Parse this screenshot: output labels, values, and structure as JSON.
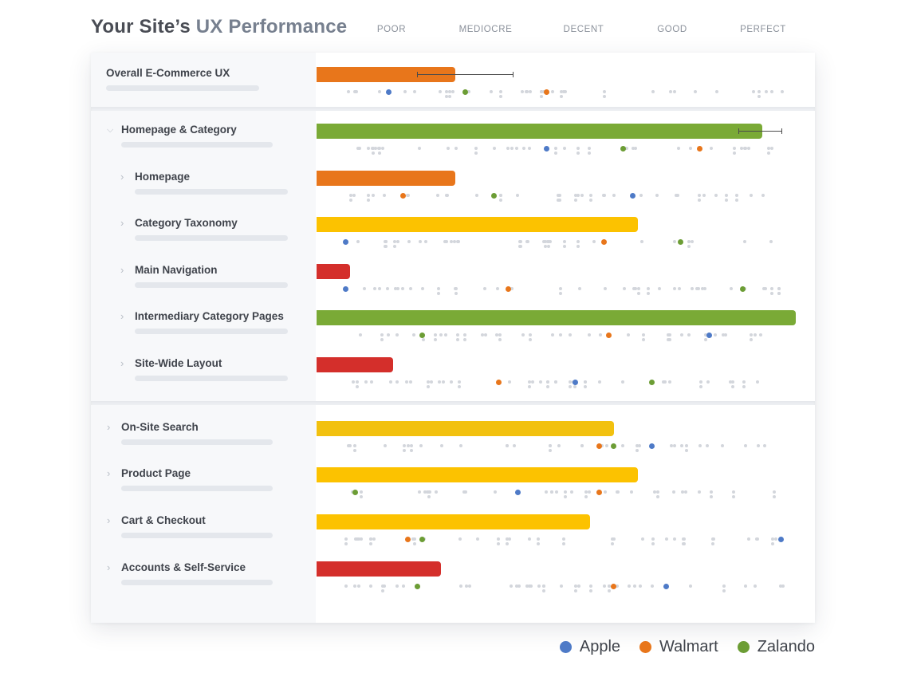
{
  "header": {
    "title_prefix": "Your Site’s ",
    "title_accent": "UX Performance"
  },
  "chart_data": {
    "type": "bar",
    "title": "Your Site’s UX Performance",
    "scale_labels": [
      "POOR",
      "MEDIOCRE",
      "DECENT",
      "GOOD",
      "PERFECT"
    ],
    "xlim": [
      0,
      100
    ],
    "rows": [
      {
        "label": "Overall E-Commerce UX",
        "level": 0,
        "score": 29,
        "rating": "mediocre",
        "color": "#e8761b",
        "error": [
          21,
          41
        ],
        "apple": 15,
        "walmart": 48,
        "zalando": 31
      },
      {
        "label": "Homepage & Category",
        "level": 1,
        "score": 93,
        "rating": "perfect",
        "color": "#7aaa36",
        "error": [
          88,
          97
        ],
        "apple": 48,
        "walmart": 80,
        "zalando": 64
      },
      {
        "label": "Homepage",
        "level": 2,
        "score": 29,
        "rating": "mediocre",
        "color": "#e8761b",
        "apple": 66,
        "walmart": 18,
        "zalando": 37
      },
      {
        "label": "Category Taxonomy",
        "level": 2,
        "score": 67,
        "rating": "decent",
        "color": "#fcc200",
        "apple": 6,
        "walmart": 60,
        "zalando": 76
      },
      {
        "label": "Main Navigation",
        "level": 2,
        "score": 7,
        "rating": "poor",
        "color": "#d42f2b",
        "apple": 6,
        "walmart": 40,
        "zalando": 89
      },
      {
        "label": "Intermediary Category Pages",
        "level": 2,
        "score": 100,
        "rating": "perfect",
        "color": "#7aaa36",
        "apple": 82,
        "walmart": 61,
        "zalando": 22
      },
      {
        "label": "Site-Wide Layout",
        "level": 2,
        "score": 16,
        "rating": "poor",
        "color": "#d42f2b",
        "apple": 54,
        "walmart": 38,
        "zalando": 70
      },
      {
        "label": "On-Site Search",
        "level": 1,
        "score": 62,
        "rating": "decent",
        "color": "#f2c10f",
        "apple": 70,
        "walmart": 59,
        "zalando": 62
      },
      {
        "label": "Product Page",
        "level": 1,
        "score": 67,
        "rating": "decent",
        "color": "#fcc200",
        "apple": 42,
        "walmart": 59,
        "zalando": 8
      },
      {
        "label": "Cart & Checkout",
        "level": 1,
        "score": 57,
        "rating": "decent",
        "color": "#fcc200",
        "apple": 97,
        "walmart": 19,
        "zalando": 22
      },
      {
        "label": "Accounts & Self-Service",
        "level": 1,
        "score": 26,
        "rating": "mediocre",
        "color": "#d42f2b",
        "apple": 73,
        "walmart": 62,
        "zalando": 21
      }
    ],
    "legend": [
      {
        "name": "Apple",
        "color": "#4e7ac7"
      },
      {
        "name": "Walmart",
        "color": "#e8761b"
      },
      {
        "name": "Zalando",
        "color": "#6c9d35"
      }
    ]
  }
}
